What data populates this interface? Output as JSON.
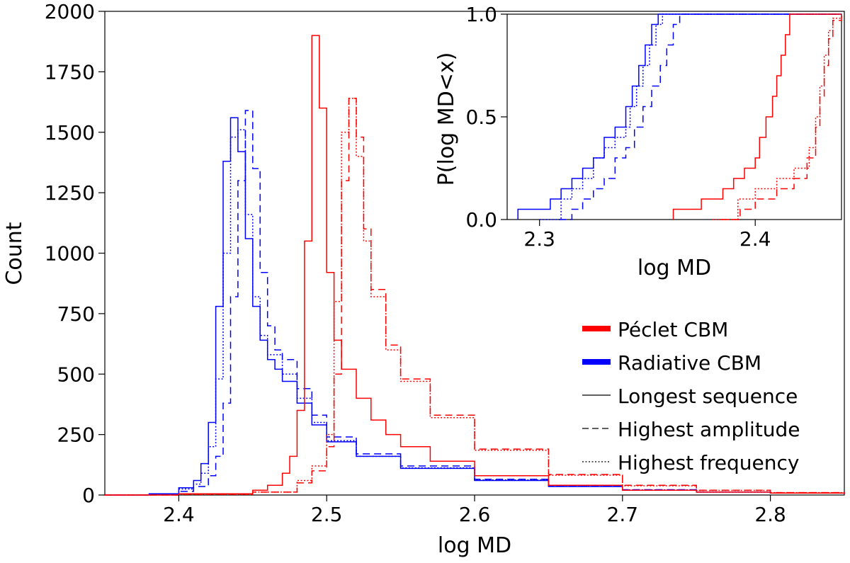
{
  "chart_data": [
    {
      "id": "main",
      "type": "line",
      "subtype": "step-histogram",
      "xlabel": "log MD",
      "ylabel": "Count",
      "xlim": [
        2.35,
        2.85
      ],
      "ylim": [
        0,
        2000
      ],
      "xticks": [
        2.4,
        2.5,
        2.6,
        2.7,
        2.8
      ],
      "xtick_labels": [
        "2.4",
        "2.5",
        "2.6",
        "2.7",
        "2.8"
      ],
      "yticks": [
        0,
        250,
        500,
        750,
        1000,
        1250,
        1500,
        1750,
        2000
      ],
      "ytick_labels": [
        "0",
        "250",
        "500",
        "750",
        "1000",
        "1250",
        "1500",
        "1750",
        "2000"
      ],
      "series": [
        {
          "name": "Radiative CBM — Longest sequence",
          "color": "#0000ff",
          "dash": "solid",
          "x": [
            2.35,
            2.38,
            2.4,
            2.41,
            2.415,
            2.42,
            2.425,
            2.43,
            2.435,
            2.44,
            2.445,
            2.45,
            2.455,
            2.46,
            2.465,
            2.47,
            2.48,
            2.49,
            2.5,
            2.52,
            2.55,
            2.6,
            2.65,
            2.7,
            2.75,
            2.8,
            2.85
          ],
          "y": [
            0,
            5,
            30,
            60,
            130,
            300,
            780,
            1380,
            1560,
            1420,
            1060,
            780,
            640,
            560,
            520,
            470,
            380,
            290,
            220,
            160,
            110,
            60,
            35,
            20,
            12,
            8,
            5
          ]
        },
        {
          "name": "Radiative CBM — Highest amplitude",
          "color": "#0000ff",
          "dash": "dashed",
          "x": [
            2.35,
            2.38,
            2.4,
            2.41,
            2.42,
            2.425,
            2.43,
            2.435,
            2.44,
            2.445,
            2.45,
            2.455,
            2.46,
            2.465,
            2.47,
            2.48,
            2.49,
            2.5,
            2.52,
            2.55,
            2.6,
            2.65,
            2.7,
            2.75,
            2.8,
            2.85
          ],
          "y": [
            0,
            3,
            15,
            35,
            80,
            160,
            380,
            820,
            1300,
            1590,
            1350,
            920,
            700,
            600,
            560,
            440,
            330,
            240,
            170,
            120,
            65,
            38,
            22,
            13,
            8,
            5
          ]
        },
        {
          "name": "Radiative CBM — Highest frequency",
          "color": "#0000ff",
          "dash": "dotted",
          "x": [
            2.35,
            2.38,
            2.4,
            2.41,
            2.415,
            2.42,
            2.425,
            2.43,
            2.435,
            2.44,
            2.445,
            2.45,
            2.455,
            2.46,
            2.47,
            2.48,
            2.49,
            2.5,
            2.52,
            2.55,
            2.6,
            2.65,
            2.7,
            2.75,
            2.8,
            2.85
          ],
          "y": [
            0,
            4,
            25,
            45,
            90,
            200,
            480,
            1000,
            1480,
            1510,
            1160,
            820,
            660,
            580,
            500,
            400,
            300,
            225,
            160,
            112,
            62,
            36,
            21,
            12,
            8,
            5
          ]
        },
        {
          "name": "Péclet CBM — Longest sequence",
          "color": "#ff0000",
          "dash": "solid",
          "x": [
            2.35,
            2.4,
            2.45,
            2.46,
            2.47,
            2.475,
            2.48,
            2.485,
            2.49,
            2.495,
            2.5,
            2.505,
            2.51,
            2.52,
            2.53,
            2.54,
            2.55,
            2.57,
            2.6,
            2.65,
            2.7,
            2.75,
            2.8,
            2.85
          ],
          "y": [
            0,
            5,
            20,
            40,
            90,
            160,
            350,
            1050,
            1900,
            1600,
            920,
            640,
            520,
            400,
            310,
            250,
            200,
            140,
            80,
            40,
            20,
            12,
            8,
            5
          ]
        },
        {
          "name": "Péclet CBM — Highest amplitude",
          "color": "#ff0000",
          "dash": "dashed",
          "x": [
            2.35,
            2.4,
            2.45,
            2.48,
            2.49,
            2.5,
            2.505,
            2.51,
            2.515,
            2.52,
            2.525,
            2.53,
            2.54,
            2.55,
            2.57,
            2.6,
            2.65,
            2.7,
            2.75,
            2.8,
            2.85
          ],
          "y": [
            0,
            3,
            12,
            50,
            100,
            200,
            500,
            1300,
            1640,
            1480,
            1100,
            850,
            620,
            480,
            330,
            190,
            85,
            40,
            20,
            10,
            5
          ]
        },
        {
          "name": "Péclet CBM — Highest frequency",
          "color": "#ff0000",
          "dash": "dotted",
          "x": [
            2.35,
            2.4,
            2.45,
            2.48,
            2.49,
            2.5,
            2.505,
            2.51,
            2.515,
            2.52,
            2.525,
            2.53,
            2.54,
            2.55,
            2.57,
            2.6,
            2.65,
            2.7,
            2.75,
            2.8,
            2.85
          ],
          "y": [
            0,
            3,
            12,
            60,
            120,
            250,
            800,
            1500,
            1640,
            1400,
            1050,
            820,
            600,
            470,
            320,
            185,
            82,
            38,
            19,
            10,
            5
          ]
        }
      ]
    },
    {
      "id": "inset",
      "type": "line",
      "subtype": "step-cdf",
      "xlabel": "log MD",
      "ylabel": "P(log MD<x)",
      "xlim": [
        2.285,
        2.44
      ],
      "ylim": [
        0,
        1.0
      ],
      "xticks": [
        2.3,
        2.4
      ],
      "xtick_labels": [
        "2.3",
        "2.4"
      ],
      "yticks": [
        0,
        0.5,
        1.0
      ],
      "ytick_labels": [
        "0.0",
        "0.5",
        "1.0"
      ],
      "series": [
        {
          "name": "Radiative CBM — Longest sequence",
          "color": "#0000ff",
          "dash": "solid",
          "x": [
            2.29,
            2.305,
            2.31,
            2.315,
            2.32,
            2.325,
            2.33,
            2.335,
            2.34,
            2.343,
            2.346,
            2.349,
            2.352,
            2.355,
            2.357,
            2.44
          ],
          "y": [
            0.05,
            0.1,
            0.15,
            0.2,
            0.25,
            0.3,
            0.4,
            0.45,
            0.55,
            0.65,
            0.75,
            0.85,
            0.95,
            1.0,
            1.0,
            1.0
          ]
        },
        {
          "name": "Radiative CBM — Highest amplitude",
          "color": "#0000ff",
          "dash": "dashed",
          "x": [
            2.309,
            2.315,
            2.32,
            2.325,
            2.33,
            2.335,
            2.34,
            2.344,
            2.348,
            2.352,
            2.356,
            2.359,
            2.362,
            2.365,
            2.44
          ],
          "y": [
            0.0,
            0.05,
            0.1,
            0.15,
            0.2,
            0.3,
            0.35,
            0.45,
            0.55,
            0.65,
            0.75,
            0.85,
            0.95,
            1.0,
            1.0
          ]
        },
        {
          "name": "Radiative CBM — Highest frequency",
          "color": "#0000ff",
          "dash": "dotted",
          "x": [
            2.3,
            2.31,
            2.315,
            2.32,
            2.325,
            2.33,
            2.335,
            2.34,
            2.342,
            2.345,
            2.348,
            2.351,
            2.354,
            2.357,
            2.44
          ],
          "y": [
            0.0,
            0.1,
            0.15,
            0.2,
            0.3,
            0.35,
            0.4,
            0.45,
            0.55,
            0.65,
            0.75,
            0.85,
            0.95,
            1.0,
            1.0
          ]
        },
        {
          "name": "Péclet CBM — Longest sequence",
          "color": "#ff0000",
          "dash": "solid",
          "x": [
            2.362,
            2.375,
            2.385,
            2.39,
            2.395,
            2.4,
            2.402,
            2.405,
            2.408,
            2.41,
            2.412,
            2.414,
            2.416,
            2.44
          ],
          "y": [
            0.05,
            0.1,
            0.15,
            0.2,
            0.25,
            0.3,
            0.4,
            0.5,
            0.6,
            0.7,
            0.8,
            0.9,
            1.0,
            1.0
          ]
        },
        {
          "name": "Péclet CBM — Highest amplitude",
          "color": "#ff0000",
          "dash": "dashed",
          "x": [
            2.384,
            2.393,
            2.4,
            2.41,
            2.418,
            2.424,
            2.428,
            2.43,
            2.432,
            2.434,
            2.436,
            2.44
          ],
          "y": [
            0.0,
            0.05,
            0.1,
            0.15,
            0.2,
            0.3,
            0.45,
            0.6,
            0.75,
            0.88,
            0.97,
            1.0
          ]
        },
        {
          "name": "Péclet CBM — Highest frequency",
          "color": "#ff0000",
          "dash": "dotted",
          "x": [
            2.38,
            2.392,
            2.4,
            2.41,
            2.418,
            2.425,
            2.428,
            2.43,
            2.432,
            2.434,
            2.436,
            2.44
          ],
          "y": [
            0.0,
            0.1,
            0.15,
            0.2,
            0.25,
            0.35,
            0.5,
            0.65,
            0.8,
            0.92,
            0.98,
            1.0
          ]
        }
      ]
    }
  ],
  "legend": {
    "placement": "lower-right",
    "entries": [
      {
        "label": "Péclet CBM",
        "color": "#ff0000",
        "style": "thick"
      },
      {
        "label": "Radiative CBM",
        "color": "#0000ff",
        "style": "thick"
      },
      {
        "label": "Longest sequence",
        "color": "#000000",
        "style": "solid"
      },
      {
        "label": "Highest amplitude",
        "color": "#000000",
        "style": "dashed"
      },
      {
        "label": "Highest frequency",
        "color": "#000000",
        "style": "dotted"
      }
    ]
  }
}
